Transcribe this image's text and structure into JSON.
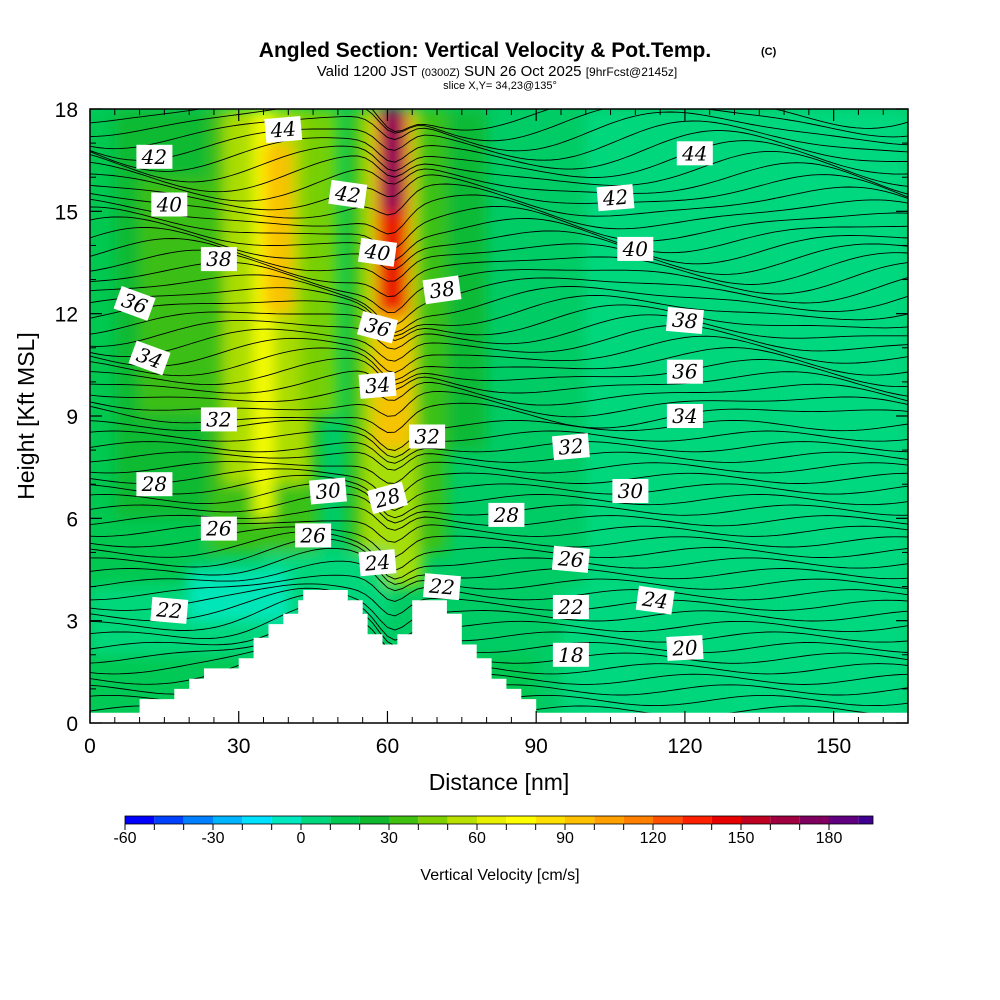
{
  "title": "Angled Section: Vertical Velocity & Pot.Temp.",
  "copyright_mark": "(C)",
  "subtitle_main": "Valid 1200 JST",
  "subtitle_utc": "(0300Z)",
  "subtitle_date": "SUN 26 Oct 2025",
  "subtitle_fcst": "[9hrFcst@2145z]",
  "slice_info": "slice X,Y= 34,23@135°",
  "chart_data": {
    "type": "heatmap",
    "xlabel": "Distance [nm]",
    "ylabel": "Height [Kft MSL]",
    "xlim": [
      0,
      165
    ],
    "ylim": [
      0,
      18
    ],
    "x_ticks": [
      0,
      30,
      60,
      90,
      120,
      150
    ],
    "y_ticks": [
      0,
      3,
      6,
      9,
      12,
      15,
      18
    ],
    "colorbar": {
      "label": "Vertical Velocity [cm/s]",
      "range": [
        -60,
        195
      ],
      "step": 10,
      "tick_labels": [
        -60,
        -30,
        0,
        30,
        60,
        90,
        120,
        150,
        180
      ],
      "colors": [
        "#0000ff",
        "#0040ff",
        "#0080ff",
        "#00b4ff",
        "#00e0ff",
        "#00e8c0",
        "#00d880",
        "#00c850",
        "#10b830",
        "#40c010",
        "#80d000",
        "#b8e000",
        "#e8f000",
        "#ffff00",
        "#ffe000",
        "#ffc000",
        "#ffa000",
        "#ff8000",
        "#ff5000",
        "#ff2000",
        "#e80000",
        "#c00020",
        "#a00040",
        "#800060",
        "#600080",
        "#400090"
      ]
    },
    "terrain_kft": [
      [
        0,
        0.3
      ],
      [
        10,
        0.3
      ],
      [
        10,
        0.7
      ],
      [
        17,
        0.7
      ],
      [
        17,
        1.0
      ],
      [
        20,
        1.0
      ],
      [
        20,
        1.3
      ],
      [
        23,
        1.3
      ],
      [
        23,
        1.6
      ],
      [
        30,
        1.6
      ],
      [
        30,
        1.9
      ],
      [
        33,
        1.9
      ],
      [
        33,
        2.5
      ],
      [
        36,
        2.5
      ],
      [
        36,
        2.9
      ],
      [
        39,
        2.9
      ],
      [
        39,
        3.2
      ],
      [
        42,
        3.2
      ],
      [
        42,
        3.6
      ],
      [
        43,
        3.6
      ],
      [
        43,
        3.9
      ],
      [
        52,
        3.9
      ],
      [
        52,
        3.6
      ],
      [
        55,
        3.6
      ],
      [
        55,
        3.2
      ],
      [
        56,
        3.2
      ],
      [
        56,
        2.6
      ],
      [
        59,
        2.6
      ],
      [
        59,
        2.3
      ],
      [
        62,
        2.3
      ],
      [
        62,
        2.6
      ],
      [
        65,
        2.6
      ],
      [
        65,
        3.6
      ],
      [
        72,
        3.6
      ],
      [
        72,
        3.2
      ],
      [
        75,
        3.2
      ],
      [
        75,
        2.3
      ],
      [
        78,
        2.3
      ],
      [
        78,
        1.9
      ],
      [
        81,
        1.9
      ],
      [
        81,
        1.3
      ],
      [
        84,
        1.3
      ],
      [
        84,
        1.0
      ],
      [
        87,
        1.0
      ],
      [
        87,
        0.7
      ],
      [
        90,
        0.7
      ],
      [
        90,
        0.3
      ],
      [
        165,
        0.3
      ]
    ],
    "velocity_field": [
      {
        "x": [
          33,
          37
        ],
        "y": [
          6,
          18
        ],
        "value": 70,
        "note": "yellow updraft column"
      },
      {
        "x": [
          35,
          41
        ],
        "y": [
          12,
          17
        ],
        "value": 90,
        "note": "yellow core"
      },
      {
        "x": [
          57,
          65
        ],
        "y": [
          8,
          18
        ],
        "value": 90,
        "note": "main updraft column"
      },
      {
        "x": [
          58,
          64
        ],
        "y": [
          12,
          18
        ],
        "value": 140,
        "note": "orange-red core"
      },
      {
        "x": [
          100,
          165
        ],
        "y": [
          0,
          18
        ],
        "value": 0,
        "note": "weak vertical motion"
      }
    ],
    "theta_contour_labels": [
      {
        "x": 39,
        "y": 17.4,
        "value": "44",
        "rot": -5
      },
      {
        "x": 13,
        "y": 16.6,
        "value": "42",
        "rot": 0
      },
      {
        "x": 52,
        "y": 15.5,
        "value": "42",
        "rot": 8
      },
      {
        "x": 106,
        "y": 15.4,
        "value": "42",
        "rot": -5
      },
      {
        "x": 122,
        "y": 16.7,
        "value": "44",
        "rot": 0
      },
      {
        "x": 16,
        "y": 15.2,
        "value": "40",
        "rot": 0
      },
      {
        "x": 58,
        "y": 13.8,
        "value": "40",
        "rot": 8
      },
      {
        "x": 110,
        "y": 13.9,
        "value": "40",
        "rot": 0
      },
      {
        "x": 26,
        "y": 13.6,
        "value": "38",
        "rot": 0
      },
      {
        "x": 71,
        "y": 12.7,
        "value": "38",
        "rot": -8
      },
      {
        "x": 120,
        "y": 11.8,
        "value": "38",
        "rot": 5
      },
      {
        "x": 9,
        "y": 12.3,
        "value": "36",
        "rot": 20
      },
      {
        "x": 58,
        "y": 11.6,
        "value": "36",
        "rot": 15
      },
      {
        "x": 120,
        "y": 10.3,
        "value": "36",
        "rot": 0
      },
      {
        "x": 12,
        "y": 10.7,
        "value": "34",
        "rot": 20
      },
      {
        "x": 58,
        "y": 9.9,
        "value": "34",
        "rot": -5
      },
      {
        "x": 120,
        "y": 9.0,
        "value": "34",
        "rot": 0
      },
      {
        "x": 26,
        "y": 8.9,
        "value": "32",
        "rot": 0
      },
      {
        "x": 68,
        "y": 8.4,
        "value": "32",
        "rot": 0
      },
      {
        "x": 97,
        "y": 8.1,
        "value": "32",
        "rot": -5
      },
      {
        "x": 13,
        "y": 7.0,
        "value": "28",
        "rot": 0
      },
      {
        "x": 48,
        "y": 6.8,
        "value": "30",
        "rot": -5
      },
      {
        "x": 60,
        "y": 6.6,
        "value": "28",
        "rot": -15
      },
      {
        "x": 84,
        "y": 6.1,
        "value": "28",
        "rot": 0
      },
      {
        "x": 109,
        "y": 6.8,
        "value": "30",
        "rot": 0
      },
      {
        "x": 26,
        "y": 5.7,
        "value": "26",
        "rot": 0
      },
      {
        "x": 45,
        "y": 5.5,
        "value": "26",
        "rot": 0
      },
      {
        "x": 58,
        "y": 4.7,
        "value": "24",
        "rot": -5
      },
      {
        "x": 97,
        "y": 4.8,
        "value": "26",
        "rot": 5
      },
      {
        "x": 71,
        "y": 4.0,
        "value": "22",
        "rot": 5
      },
      {
        "x": 16,
        "y": 3.3,
        "value": "22",
        "rot": 5
      },
      {
        "x": 97,
        "y": 3.4,
        "value": "22",
        "rot": 0
      },
      {
        "x": 114,
        "y": 3.6,
        "value": "24",
        "rot": 8
      },
      {
        "x": 97,
        "y": 2.0,
        "value": "18",
        "rot": 0
      },
      {
        "x": 120,
        "y": 2.2,
        "value": "20",
        "rot": -3
      }
    ]
  }
}
